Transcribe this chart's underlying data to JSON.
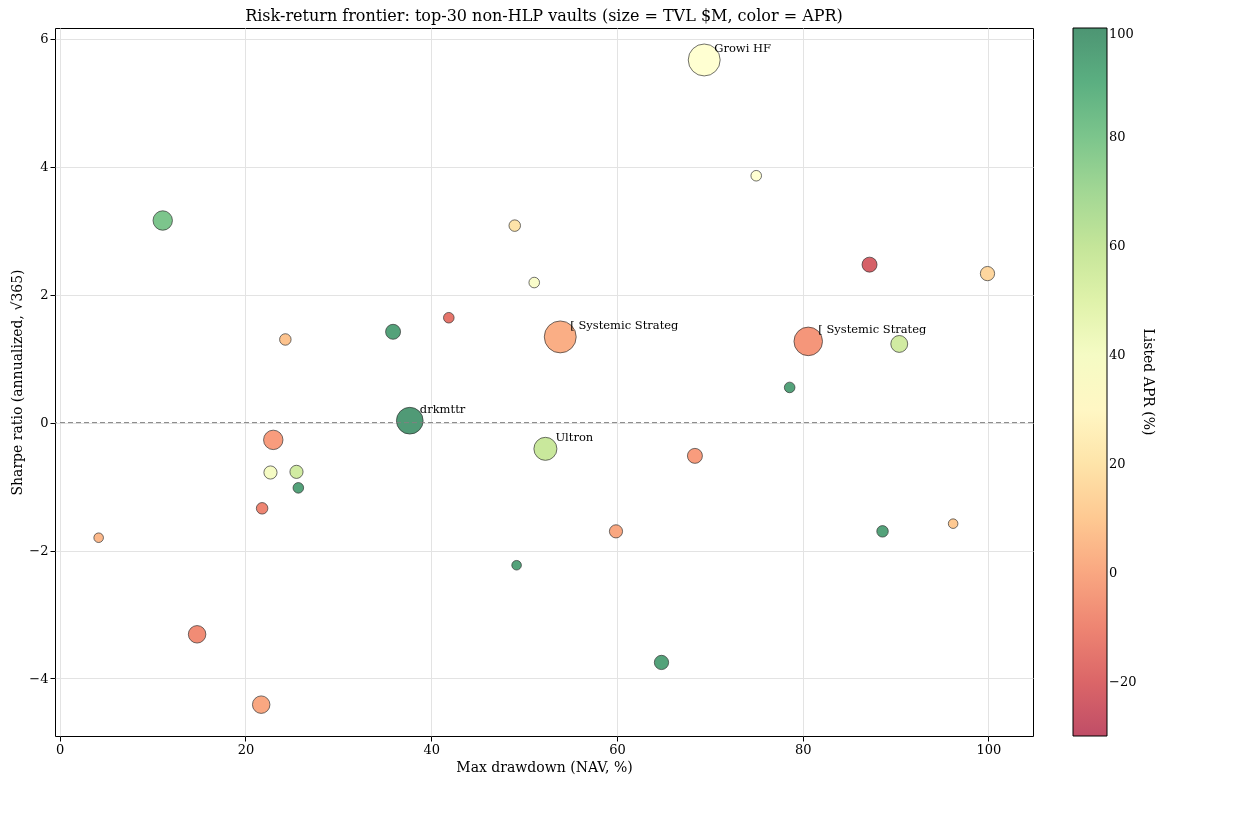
{
  "chart_data": {
    "type": "bubble",
    "title": "Risk-return frontier: top-30 non-HLP vaults (size = TVL $M, color = APR)",
    "xlabel": "Max drawdown (NAV, %)",
    "ylabel": "Sharpe ratio (annualized, √365)",
    "clabel": "Listed APR (%)",
    "x": [
      69.4,
      75.0,
      11.1,
      49.0,
      51.1,
      87.2,
      99.9,
      24.3,
      35.9,
      41.9,
      53.9,
      80.6,
      90.4,
      78.6,
      37.7,
      52.3,
      23.0,
      22.7,
      25.5,
      25.7,
      68.4,
      21.8,
      4.2,
      59.9,
      49.2,
      88.6,
      96.2,
      14.8,
      64.8,
      21.7
    ],
    "values": [
      5.67,
      3.86,
      3.16,
      3.08,
      2.19,
      2.47,
      2.33,
      1.3,
      1.42,
      1.64,
      1.34,
      1.27,
      1.23,
      0.55,
      0.03,
      -0.41,
      -0.27,
      -0.78,
      -0.77,
      -1.02,
      -0.52,
      -1.34,
      -1.8,
      -1.7,
      -2.23,
      -1.7,
      -1.58,
      -3.31,
      -3.75,
      -4.41
    ],
    "sizes": [
      1,
      0.11,
      0.37,
      0.13,
      0.11,
      0.22,
      0.2,
      0.13,
      0.22,
      0.11,
      1,
      0.8,
      0.28,
      0.11,
      0.7,
      0.52,
      0.37,
      0.17,
      0.17,
      0.11,
      0.22,
      0.13,
      0.09,
      0.17,
      0.09,
      0.13,
      0.09,
      0.3,
      0.2,
      0.3
    ],
    "cvalues": [
      35,
      35,
      80,
      20,
      38,
      -22,
      15,
      8,
      95,
      -15,
      2,
      -5,
      55,
      95,
      98,
      58,
      -3,
      40,
      55,
      95,
      -3,
      -10,
      5,
      0,
      95,
      95,
      10,
      -8,
      95,
      0
    ],
    "clim": [
      -30,
      100
    ],
    "cticks": [
      -20,
      0,
      20,
      40,
      60,
      80,
      100
    ],
    "xlim": [
      -0.5,
      104.8
    ],
    "xticks": [
      0,
      20,
      40,
      60,
      80,
      100
    ],
    "ylim": [
      -4.9,
      6.17
    ],
    "yticks": [
      -4,
      -2,
      0,
      2,
      4,
      6
    ],
    "grid": true,
    "marker": "circle",
    "ref_lines": [
      {
        "axis": "y",
        "value": 0,
        "color": "#808080",
        "line_style": "dashed"
      }
    ],
    "annotations": [
      {
        "text": "Growi HF",
        "x": 69.4,
        "y": 5.67
      },
      {
        "text": "[ Systemic Strateg",
        "x": 53.9,
        "y": 1.34
      },
      {
        "text": "[ Systemic Strateg",
        "x": 80.6,
        "y": 1.27
      },
      {
        "text": "drkmttr",
        "x": 37.7,
        "y": 0.03
      },
      {
        "text": "Ultron",
        "x": 52.3,
        "y": -0.41
      }
    ]
  }
}
